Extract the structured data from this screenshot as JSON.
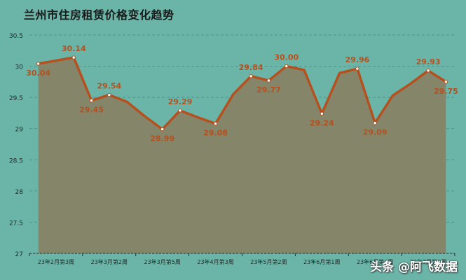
{
  "title": "兰州市住房租赁价格变化趋势",
  "watermark": "头条 @阿飞数据",
  "colors": {
    "background": "#6bb5a8",
    "area_fill": "#85856a",
    "line": "#b4511f",
    "label": "#b4511f",
    "grid": "#4e9487",
    "axis_text": "#1e2a28"
  },
  "chart_data": {
    "type": "area",
    "title": "兰州市住房租赁价格变化趋势",
    "xlabel": "",
    "ylabel": "",
    "ylim": [
      27,
      30.5
    ],
    "yticks": [
      27,
      27.5,
      28,
      28.5,
      29,
      29.5,
      30,
      30.5
    ],
    "ytick_labels": [
      "27",
      "27.5",
      "28",
      "28.5",
      "29",
      "29.5",
      "30",
      "30.5"
    ],
    "grid": true,
    "legend": null,
    "xtick_labels": [
      "23年2月第3周",
      "23年3月第2周",
      "23年3月第5周",
      "23年4月第3周",
      "23年5月第2周",
      "23年6月第1周",
      "23年6月第4周",
      "23年7月第2周"
    ],
    "xtick_every": 3,
    "values": [
      30.04,
      30.09,
      30.14,
      29.45,
      29.54,
      29.43,
      29.2,
      28.99,
      29.29,
      29.18,
      29.08,
      29.55,
      29.84,
      29.77,
      30.0,
      29.94,
      29.24,
      29.89,
      29.96,
      29.09,
      29.53,
      29.72,
      29.93,
      29.75
    ],
    "labeled_points": [
      {
        "index": 0,
        "value": "30.04",
        "pos": "below"
      },
      {
        "index": 2,
        "value": "30.14",
        "pos": "above"
      },
      {
        "index": 3,
        "value": "29.45",
        "pos": "below"
      },
      {
        "index": 4,
        "value": "29.54",
        "pos": "above"
      },
      {
        "index": 7,
        "value": "28.99",
        "pos": "below"
      },
      {
        "index": 8,
        "value": "29.29",
        "pos": "above"
      },
      {
        "index": 10,
        "value": "29.08",
        "pos": "below"
      },
      {
        "index": 12,
        "value": "29.84",
        "pos": "above"
      },
      {
        "index": 13,
        "value": "29.77",
        "pos": "below"
      },
      {
        "index": 14,
        "value": "30.00",
        "pos": "above"
      },
      {
        "index": 16,
        "value": "29.24",
        "pos": "below"
      },
      {
        "index": 18,
        "value": "29.96",
        "pos": "above"
      },
      {
        "index": 19,
        "value": "29.09",
        "pos": "below"
      },
      {
        "index": 22,
        "value": "29.93",
        "pos": "above"
      },
      {
        "index": 23,
        "value": "29.75",
        "pos": "below"
      }
    ]
  }
}
